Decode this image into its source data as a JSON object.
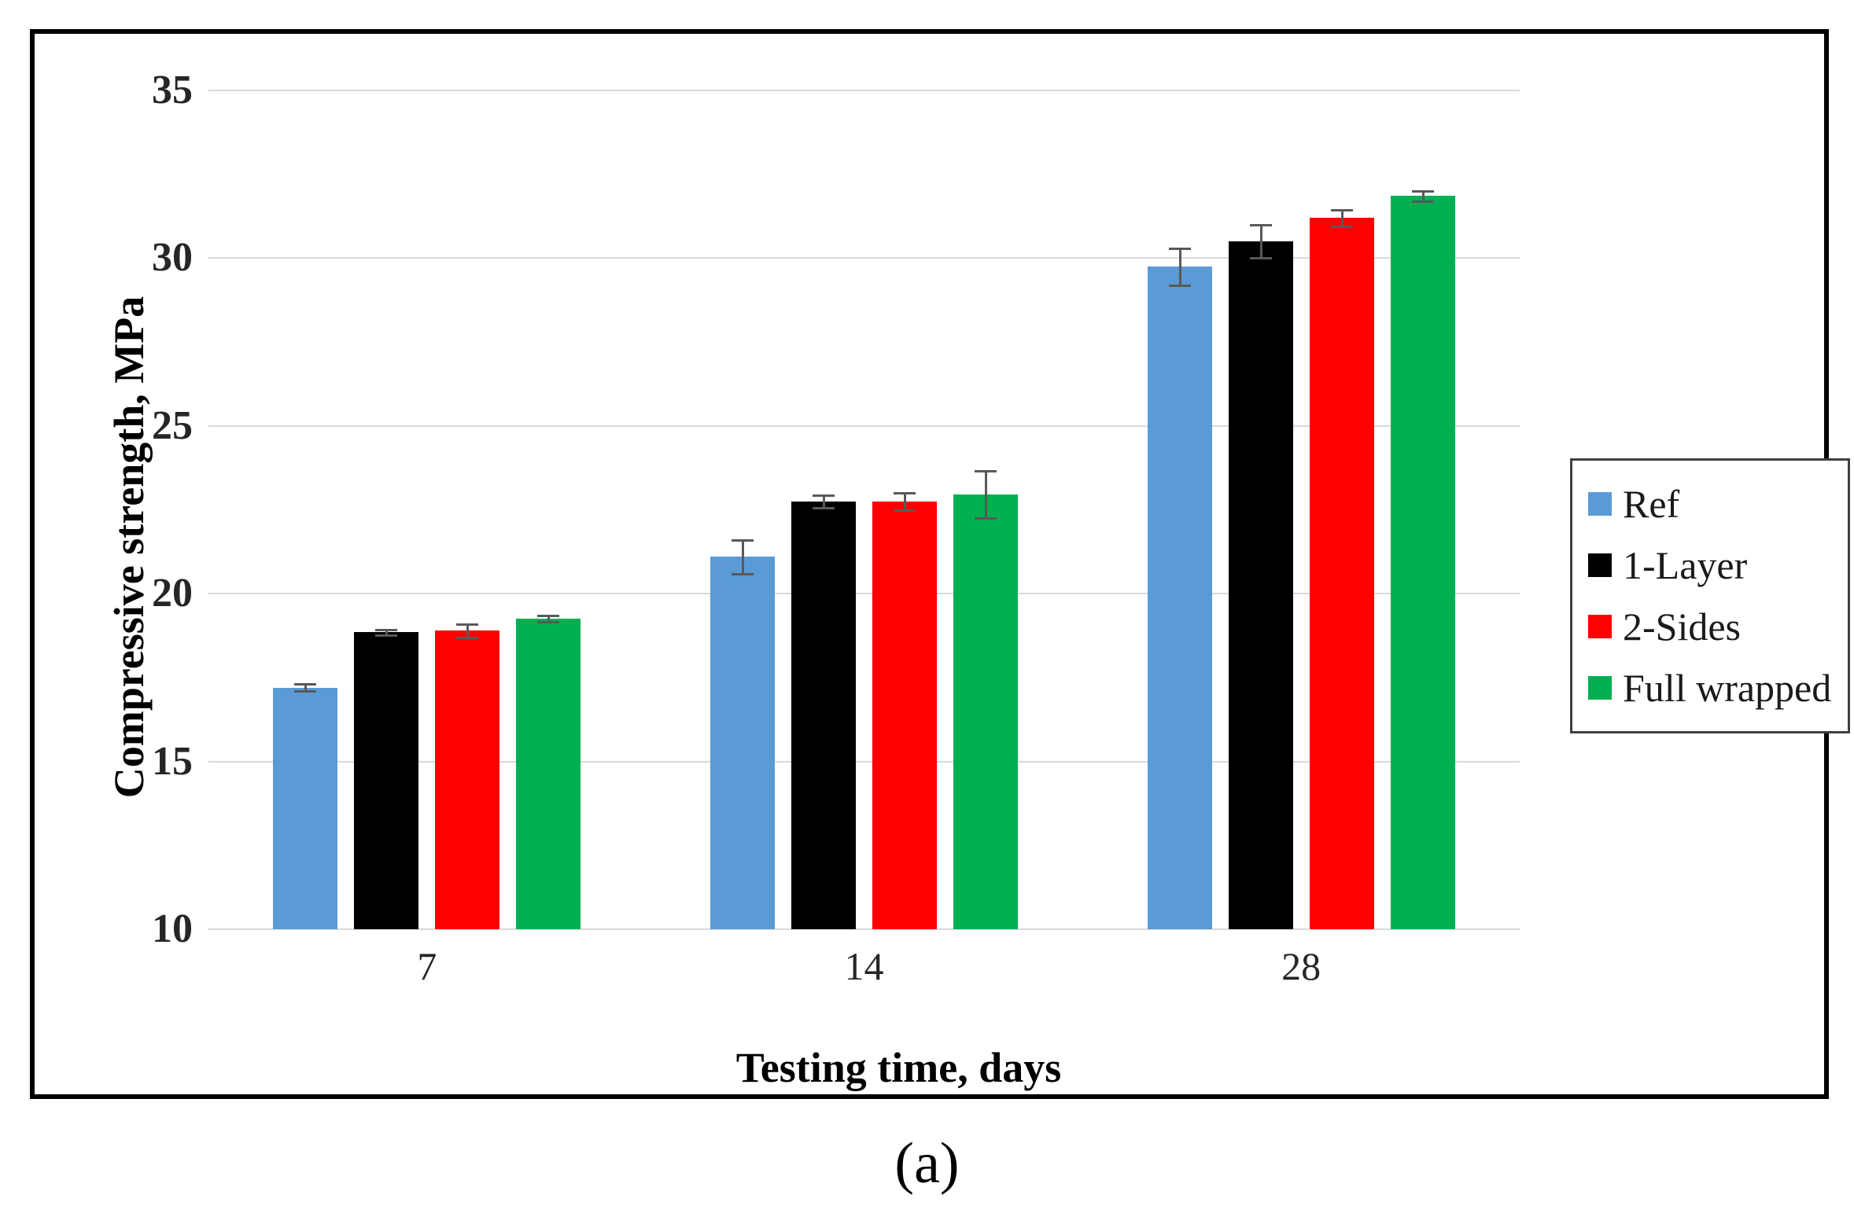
{
  "figure": {
    "caption": "(a)"
  },
  "chart_data": {
    "type": "bar",
    "title": "",
    "xlabel": "Testing time, days",
    "ylabel": "Compressive strength, MPa",
    "categories": [
      "7",
      "14",
      "28"
    ],
    "series": [
      {
        "name": "Ref",
        "color": "#5B9BD5",
        "values": [
          17.2,
          21.1,
          29.75
        ],
        "errors": [
          0.1,
          0.5,
          0.55
        ]
      },
      {
        "name": "1-Layer",
        "color": "#000000",
        "values": [
          18.85,
          22.75,
          30.5
        ],
        "errors": [
          0.08,
          0.18,
          0.5
        ]
      },
      {
        "name": "2-Sides",
        "color": "#FF0000",
        "values": [
          18.9,
          22.75,
          31.2
        ],
        "errors": [
          0.2,
          0.25,
          0.25
        ]
      },
      {
        "name": "Full wrapped",
        "color": "#00B050",
        "values": [
          19.25,
          22.95,
          31.85
        ],
        "errors": [
          0.1,
          0.7,
          0.15
        ]
      }
    ],
    "y_ticks": [
      10,
      15,
      20,
      25,
      30,
      35
    ],
    "ylim": [
      10,
      35
    ],
    "grid": true,
    "legend_position": "right",
    "error_bar_color": "#595959",
    "gridline_color": "#D9D9D9"
  }
}
